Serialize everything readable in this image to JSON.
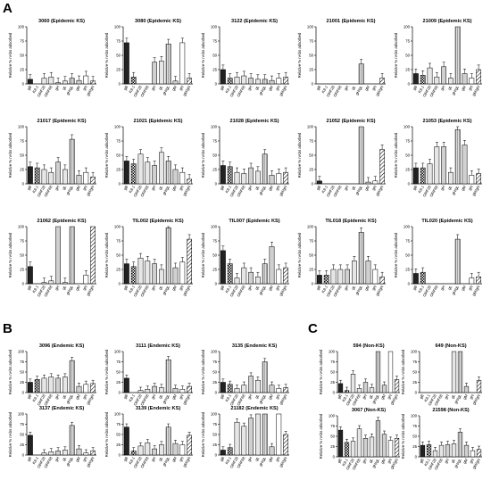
{
  "panel_labels": {
    "A": "A",
    "B": "B",
    "C": "C"
  },
  "ylabel": "Relative % nAbs adsorbed",
  "categories": [
    "gB",
    "K8.1",
    "ORF28",
    "ORF68",
    "gH",
    "gL",
    "gH/gL",
    "gM",
    "gN",
    "gM/gN"
  ],
  "yticks": [
    0,
    25,
    50,
    75,
    100
  ],
  "ylim": [
    0,
    100
  ],
  "chart_data": [
    {
      "type": "bar",
      "panel": "A",
      "title": "3060 (Epidemic KS)",
      "ylim": [
        0,
        100
      ],
      "values": [
        8,
        0,
        10,
        12,
        2,
        5,
        10,
        6,
        14,
        5
      ]
    },
    {
      "type": "bar",
      "panel": "A",
      "title": "3080 (Epidemic KS)",
      "ylim": [
        0,
        100
      ],
      "values": [
        72,
        12,
        0,
        0,
        38,
        40,
        70,
        5,
        72,
        10
      ]
    },
    {
      "type": "bar",
      "panel": "A",
      "title": "3122 (Epidemic KS)",
      "ylim": [
        0,
        100
      ],
      "values": [
        25,
        10,
        12,
        14,
        10,
        8,
        8,
        6,
        10,
        12
      ]
    },
    {
      "type": "bar",
      "panel": "A",
      "title": "21001 (Epidemic KS)",
      "ylim": [
        0,
        100
      ],
      "values": [
        0,
        0,
        0,
        0,
        0,
        0,
        35,
        0,
        0,
        10
      ]
    },
    {
      "type": "bar",
      "panel": "A",
      "title": "21009 (Epidemic KS)",
      "ylim": [
        0,
        100
      ],
      "values": [
        18,
        15,
        28,
        12,
        30,
        10,
        100,
        18,
        10,
        25
      ]
    },
    {
      "type": "bar",
      "panel": "A",
      "title": "21017 (Epidemic KS)",
      "ylim": [
        0,
        100
      ],
      "values": [
        30,
        28,
        25,
        20,
        38,
        25,
        78,
        15,
        20,
        12
      ]
    },
    {
      "type": "bar",
      "panel": "A",
      "title": "21021 (Epidemic KS)",
      "ylim": [
        0,
        100
      ],
      "values": [
        40,
        35,
        52,
        38,
        32,
        55,
        40,
        25,
        20,
        8
      ]
    },
    {
      "type": "bar",
      "panel": "A",
      "title": "21028 (Epidemic KS)",
      "ylim": [
        0,
        100
      ],
      "values": [
        32,
        30,
        20,
        18,
        28,
        22,
        52,
        15,
        18,
        20
      ]
    },
    {
      "type": "bar",
      "panel": "A",
      "title": "21052 (Epidemic KS)",
      "ylim": [
        0,
        100
      ],
      "values": [
        5,
        0,
        0,
        0,
        0,
        0,
        100,
        3,
        5,
        60
      ]
    },
    {
      "type": "bar",
      "panel": "A",
      "title": "21053 (Epidemic KS)",
      "ylim": [
        0,
        100
      ],
      "values": [
        28,
        28,
        35,
        65,
        65,
        20,
        95,
        68,
        15,
        18
      ]
    },
    {
      "type": "bar",
      "panel": "A",
      "title": "21062 (Epidemic KS)",
      "ylim": [
        0,
        100
      ],
      "values": [
        30,
        0,
        2,
        5,
        100,
        2,
        100,
        0,
        15,
        100
      ]
    },
    {
      "type": "bar",
      "panel": "A",
      "title": "TIL002 (Epidemic KS)",
      "ylim": [
        0,
        100
      ],
      "values": [
        35,
        30,
        45,
        40,
        35,
        25,
        98,
        28,
        38,
        78
      ]
    },
    {
      "type": "bar",
      "panel": "A",
      "title": "TIL007 (Epidemic KS)",
      "ylim": [
        0,
        100
      ],
      "values": [
        58,
        35,
        10,
        28,
        20,
        12,
        35,
        65,
        25,
        28
      ]
    },
    {
      "type": "bar",
      "panel": "A",
      "title": "TIL018 (Epidemic KS)",
      "ylim": [
        0,
        100
      ],
      "values": [
        15,
        15,
        25,
        25,
        25,
        40,
        90,
        40,
        25,
        12
      ]
    },
    {
      "type": "bar",
      "panel": "A",
      "title": "TIL020 (Epidemic KS)",
      "ylim": [
        0,
        100
      ],
      "values": [
        18,
        20,
        0,
        0,
        0,
        0,
        78,
        0,
        10,
        12
      ]
    },
    {
      "type": "bar",
      "panel": "B",
      "title": "3096 (Endemic KS)",
      "ylim": [
        0,
        100
      ],
      "values": [
        25,
        32,
        35,
        38,
        35,
        38,
        78,
        15,
        20,
        22
      ]
    },
    {
      "type": "bar",
      "panel": "B",
      "title": "3111 (Endemic KS)",
      "ylim": [
        0,
        100
      ],
      "values": [
        35,
        0,
        5,
        8,
        15,
        12,
        80,
        10,
        8,
        15
      ]
    },
    {
      "type": "bar",
      "panel": "B",
      "title": "3135 (Endemic KS)",
      "ylim": [
        0,
        100
      ],
      "values": [
        25,
        20,
        10,
        18,
        40,
        30,
        75,
        18,
        10,
        12
      ]
    },
    {
      "type": "bar",
      "panel": "B",
      "title": "3137 (Endemic KS)",
      "ylim": [
        0,
        100
      ],
      "values": [
        48,
        0,
        5,
        8,
        10,
        12,
        72,
        15,
        5,
        10
      ]
    },
    {
      "type": "bar",
      "panel": "B",
      "title": "3139 (Endemic KS)",
      "ylim": [
        0,
        100
      ],
      "values": [
        68,
        10,
        22,
        30,
        15,
        25,
        68,
        28,
        25,
        48
      ]
    },
    {
      "type": "bar",
      "panel": "B",
      "title": "21182 (Endemic KS)",
      "ylim": [
        0,
        100
      ],
      "values": [
        12,
        18,
        80,
        70,
        90,
        100,
        100,
        20,
        100,
        50
      ]
    },
    {
      "type": "bar",
      "panel": "C",
      "title": "594 (Non-KS)",
      "ylim": [
        0,
        100
      ],
      "values": [
        22,
        5,
        45,
        10,
        25,
        12,
        100,
        18,
        100,
        32
      ]
    },
    {
      "type": "bar",
      "panel": "C",
      "title": "649 (Non-KS)",
      "ylim": [
        0,
        100
      ],
      "values": [
        0,
        0,
        0,
        0,
        0,
        100,
        100,
        15,
        0,
        30
      ]
    },
    {
      "type": "bar",
      "panel": "C",
      "title": "3067 (Non-KS)",
      "ylim": [
        0,
        100
      ],
      "values": [
        65,
        35,
        38,
        68,
        45,
        48,
        88,
        55,
        40,
        45
      ]
    },
    {
      "type": "bar",
      "panel": "C",
      "title": "21598 (Non-KS)",
      "ylim": [
        0,
        100
      ],
      "values": [
        28,
        30,
        15,
        28,
        30,
        32,
        60,
        28,
        15,
        18
      ]
    }
  ],
  "colors": {
    "dark": "#222222",
    "mid": "#555555",
    "light": "#d0d0d0",
    "lighter": "#e6e6e6",
    "line": "#000000"
  }
}
